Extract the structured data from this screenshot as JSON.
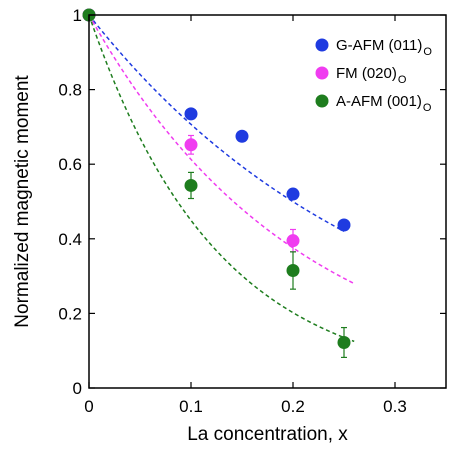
{
  "chart_data": {
    "type": "scatter",
    "xlabel": "La concentration, x",
    "ylabel": "Normalized magnetic moment",
    "xlim": [
      0,
      0.35
    ],
    "ylim": [
      0,
      1
    ],
    "xticks": [
      0,
      0.1,
      0.2,
      0.3
    ],
    "xtick_labels": [
      "0",
      "0.1",
      "0.2",
      "0.3"
    ],
    "yticks": [
      0,
      0.2,
      0.4,
      0.6,
      0.8,
      1
    ],
    "ytick_labels": [
      "0",
      "0.2",
      "0.4",
      "0.6",
      "0.8",
      "1"
    ],
    "grid": false,
    "legend_position": "top-right",
    "series": [
      {
        "name": "G-AFM (011)",
        "subscript": "O",
        "color": "#1f3be0",
        "points": [
          {
            "x": 0,
            "y": 1.0
          },
          {
            "x": 0.1,
            "y": 0.735,
            "err": 0.012
          },
          {
            "x": 0.15,
            "y": 0.675,
            "err": 0.01
          },
          {
            "x": 0.2,
            "y": 0.52,
            "err": 0.012
          },
          {
            "x": 0.25,
            "y": 0.437,
            "err": 0.01
          }
        ],
        "fit": {
          "x_end": 0.25,
          "y_end": 0.42
        }
      },
      {
        "name": "FM (020)",
        "subscript": "O",
        "color": "#f03cf0",
        "points": [
          {
            "x": 0,
            "y": 1.0
          },
          {
            "x": 0.1,
            "y": 0.652,
            "err": 0.025
          },
          {
            "x": 0.2,
            "y": 0.395,
            "err": 0.03
          }
        ],
        "fit": {
          "x_end": 0.26,
          "y_end": 0.28
        }
      },
      {
        "name": "A-AFM (001)",
        "subscript": "O",
        "color": "#1e7d1e",
        "points": [
          {
            "x": 0,
            "y": 1.0
          },
          {
            "x": 0.1,
            "y": 0.543,
            "err": 0.035
          },
          {
            "x": 0.2,
            "y": 0.315,
            "err": 0.05
          },
          {
            "x": 0.25,
            "y": 0.122,
            "err": 0.04
          }
        ],
        "fit": {
          "x_end": 0.26,
          "y_end": 0.125
        }
      }
    ]
  }
}
